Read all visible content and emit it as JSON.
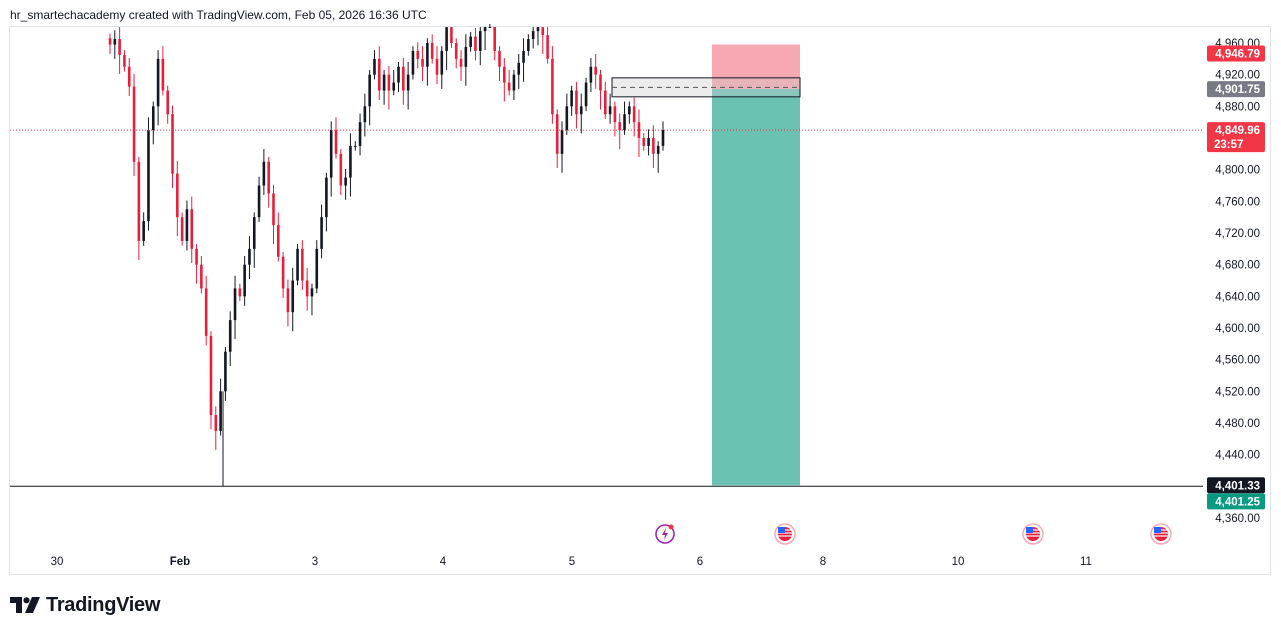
{
  "header": {
    "attribution": "hr_smartechacademy created with TradingView.com, Feb 05, 2026 16:36 UTC"
  },
  "footer": {
    "brand": "TradingView"
  },
  "colors": {
    "up": "#131722",
    "down": "#e91e3a",
    "target": "#6bc2b2",
    "stop": "#f7a9b3",
    "current": "#f23645",
    "entry_badge": "#787b86",
    "zone_badge": "#131722",
    "target_badge": "#089981"
  },
  "chart_data": {
    "type": "candlestick",
    "ylim": [
      4340,
      4980
    ],
    "y_ticks": [
      "4,960.00",
      "4,920.00",
      "4,880.00",
      "4,800.00",
      "4,760.00",
      "4,720.00",
      "4,680.00",
      "4,640.00",
      "4,600.00",
      "4,560.00",
      "4,520.00",
      "4,480.00",
      "4,440.00",
      "4,360.00"
    ],
    "x_ticks": [
      "30",
      "Feb",
      "3",
      "4",
      "5",
      "6",
      "8",
      "10",
      "11"
    ],
    "price_badges": {
      "stop": "4,946.79",
      "entry": "4,901.75",
      "current": "4,849.96",
      "countdown": "23:57",
      "support_line": "4,401.33",
      "target": "4,401.25"
    },
    "levels": {
      "stop": 4946.79,
      "entry": 4901.75,
      "current": 4849.96,
      "support": 4401.33,
      "target": 4401.25,
      "zone_top": 4916,
      "zone_bottom": 4892
    },
    "candles_close": [
      4958,
      4965,
      4945,
      4930,
      4905,
      4810,
      4710,
      4735,
      4850,
      4880,
      4940,
      4900,
      4870,
      4795,
      4740,
      4710,
      4750,
      4700,
      4680,
      4650,
      4590,
      4490,
      4470,
      4520,
      4570,
      4610,
      4650,
      4640,
      4680,
      4700,
      4740,
      4780,
      4810,
      4770,
      4730,
      4690,
      4650,
      4620,
      4660,
      4700,
      4660,
      4640,
      4650,
      4700,
      4740,
      4790,
      4850,
      4820,
      4780,
      4790,
      4830,
      4830,
      4860,
      4880,
      4920,
      4940,
      4900,
      4920,
      4900,
      4910,
      4930,
      4900,
      4920,
      4950,
      4940,
      4930,
      4960,
      4940,
      4920,
      4950,
      4980,
      4960,
      4940,
      4930,
      4955,
      4968,
      4950,
      4975,
      4990,
      5000,
      4950,
      4930,
      4910,
      4900,
      4920,
      4935,
      4950,
      4965,
      4975,
      4980,
      4970,
      4940,
      4870,
      4820,
      4850,
      4880,
      4900,
      4870,
      4880,
      4910,
      4930,
      4920,
      4900,
      4870,
      4880,
      4860,
      4850,
      4870,
      4880,
      4860,
      4840,
      4830,
      4840,
      4820,
      4830,
      4850
    ],
    "series_x_range": [
      "Jan 29",
      "Feb 5"
    ],
    "trade_box": {
      "type": "short-position",
      "from_x": "Feb 5 late",
      "to_x": "Feb 7"
    },
    "events": [
      "event-icon",
      "us-flag-icon",
      "us-flag-icon",
      "us-flag-icon"
    ]
  }
}
